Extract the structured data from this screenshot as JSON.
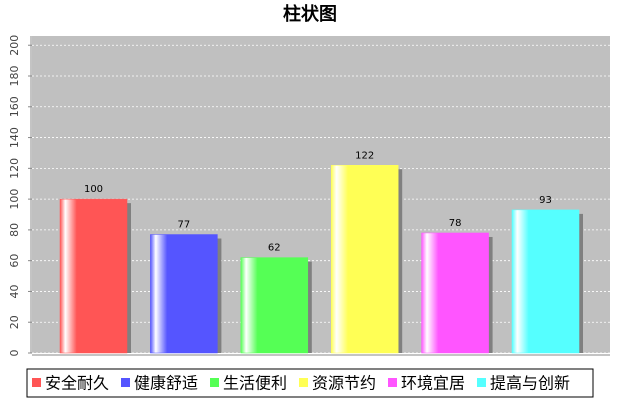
{
  "chart_data": {
    "type": "bar",
    "title": "柱状图",
    "categories": [
      null
    ],
    "series": [
      {
        "name": "安全耐久",
        "color": "#ff5555",
        "values": [
          100
        ]
      },
      {
        "name": "健康舒适",
        "color": "#5555ff",
        "values": [
          77
        ]
      },
      {
        "name": "生活便利",
        "color": "#55ff55",
        "values": [
          62
        ]
      },
      {
        "name": "资源节约",
        "color": "#ffff55",
        "values": [
          122
        ]
      },
      {
        "name": "环境宜居",
        "color": "#ff55ff",
        "values": [
          78
        ]
      },
      {
        "name": "提高与创新",
        "color": "#55ffff",
        "values": [
          93
        ]
      }
    ],
    "ylim": [
      0,
      206
    ],
    "yticks": [
      0,
      20,
      40,
      60,
      80,
      100,
      120,
      140,
      160,
      180,
      200
    ],
    "grid": true,
    "legend": "bottom"
  }
}
